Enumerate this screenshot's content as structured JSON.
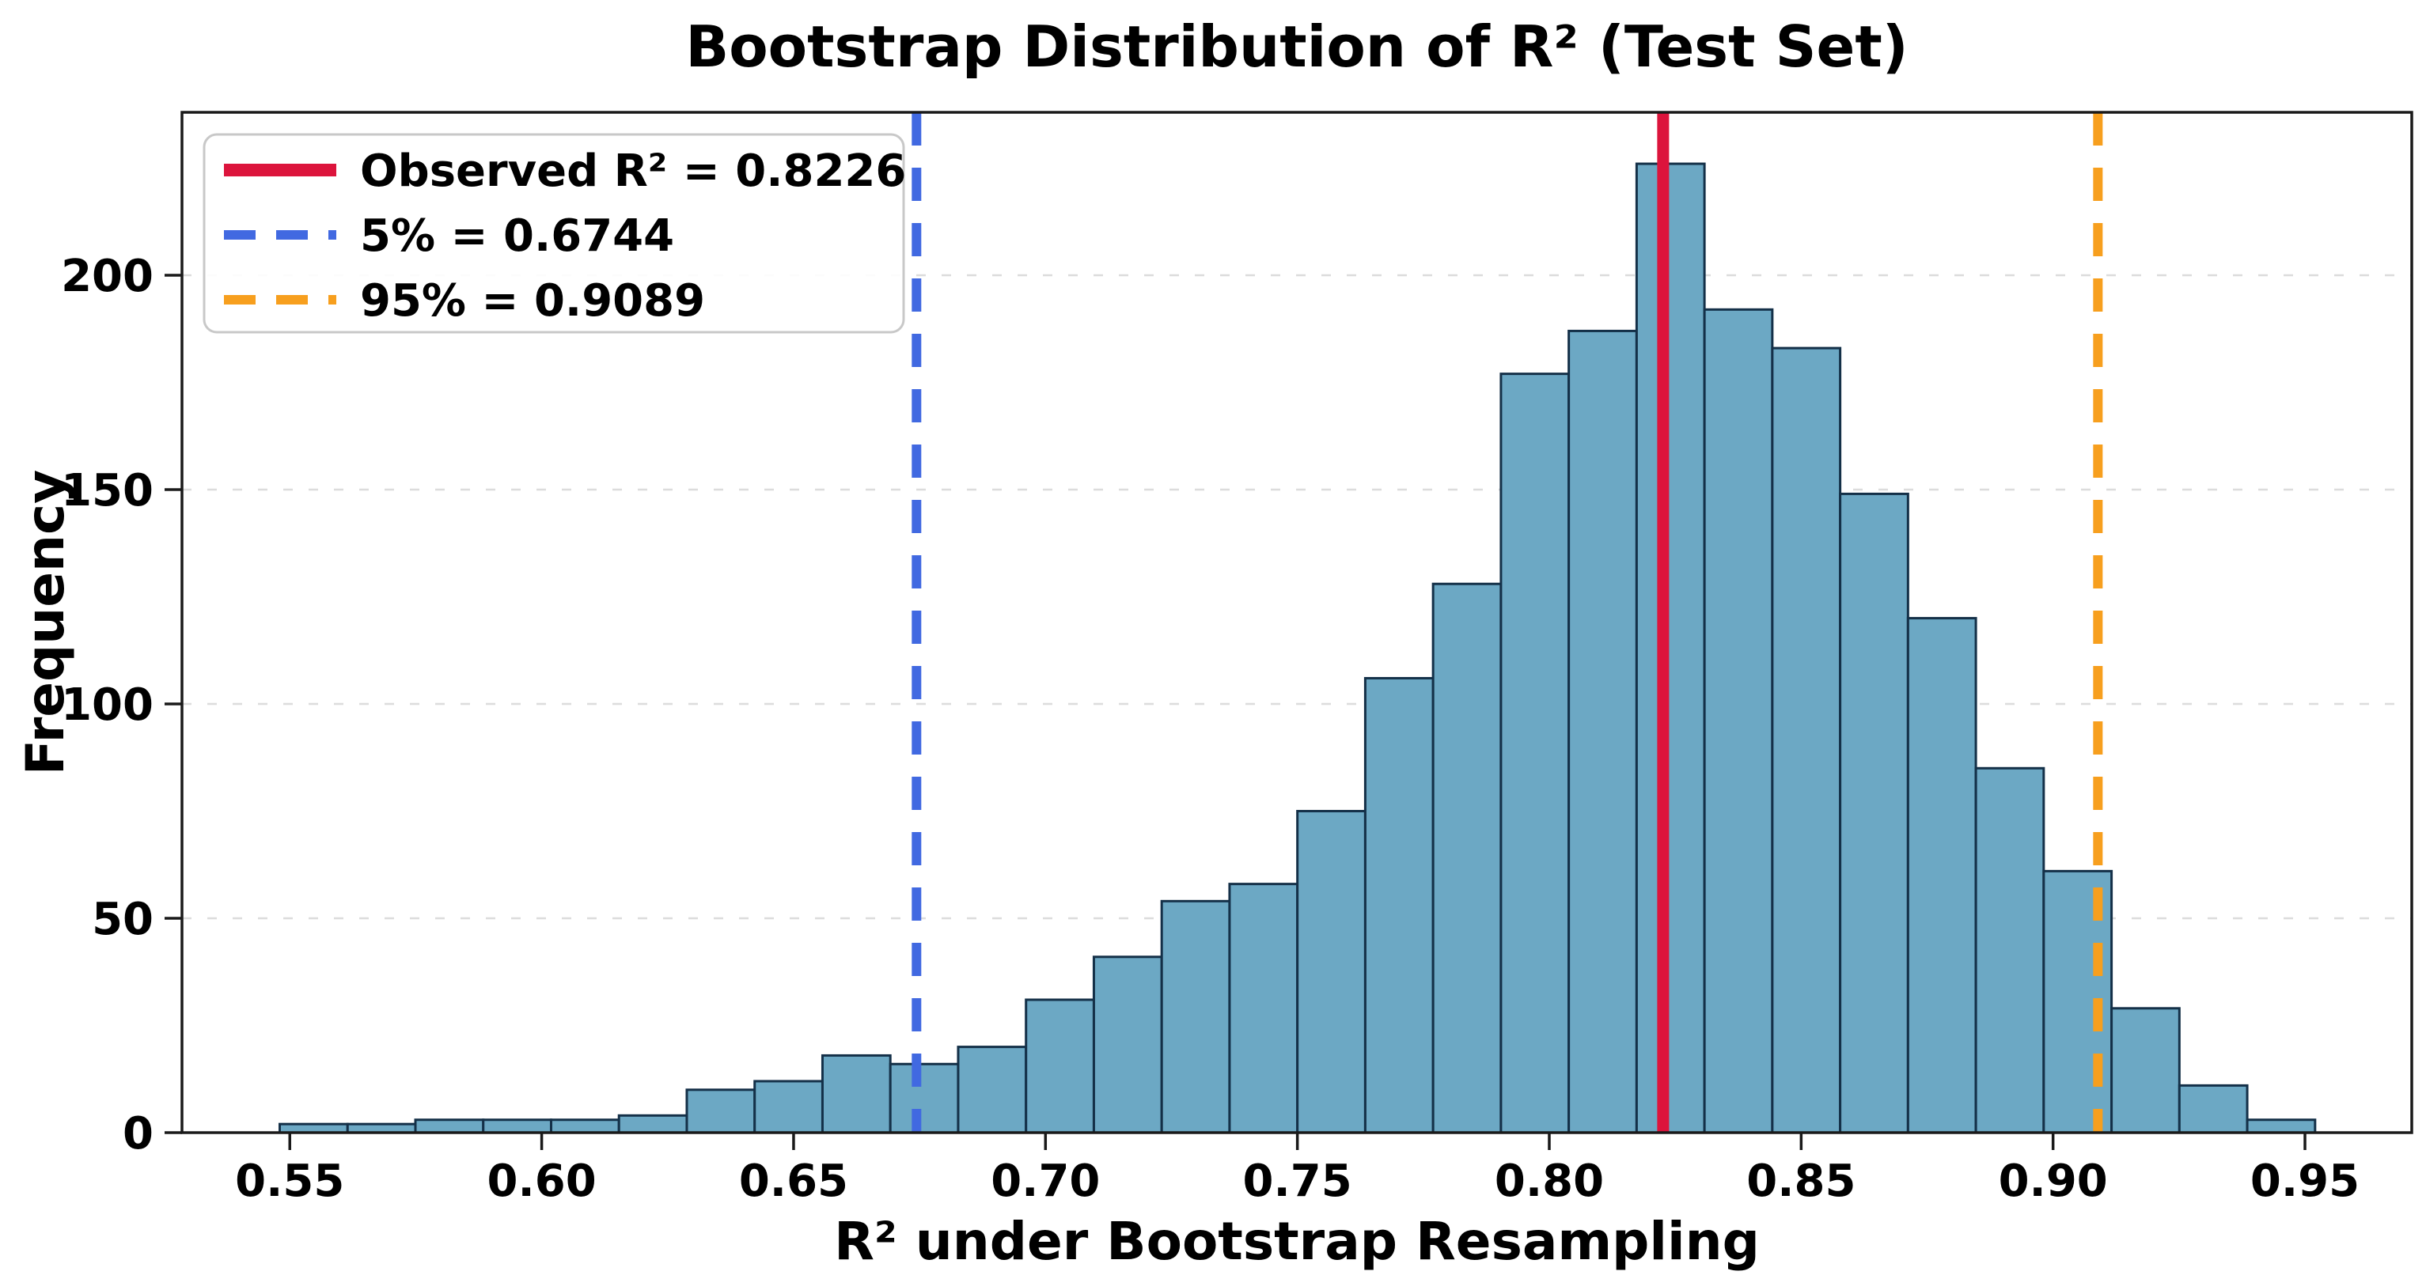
{
  "chart_data": {
    "type": "bar",
    "subtype": "histogram",
    "title": "Bootstrap Distribution of R² (Test Set)",
    "xlabel": "R² under Bootstrap Resampling",
    "ylabel": "Frequency",
    "bin_start": 0.548,
    "bin_width": 0.013467,
    "values": [
      2,
      2,
      3,
      3,
      3,
      4,
      10,
      12,
      18,
      16,
      20,
      31,
      41,
      54,
      58,
      75,
      106,
      128,
      177,
      187,
      226,
      192,
      183,
      149,
      120,
      85,
      61,
      29,
      11,
      3
    ],
    "x_ticks": [
      0.55,
      0.6,
      0.65,
      0.7,
      0.75,
      0.8,
      0.85,
      0.9,
      0.95
    ],
    "x_tick_labels": [
      "0.55",
      "0.60",
      "0.65",
      "0.70",
      "0.75",
      "0.80",
      "0.85",
      "0.90",
      "0.95"
    ],
    "y_ticks": [
      0,
      50,
      100,
      150,
      200
    ],
    "y_tick_labels": [
      "0",
      "50",
      "100",
      "150",
      "200"
    ],
    "xlim": [
      0.5286,
      0.9712
    ],
    "ylim": [
      0,
      238
    ],
    "grid": "horizontal-dashed",
    "legend_position": "upper-left",
    "bar_fill": "#6CA8C4",
    "bar_edge": "#143048",
    "vlines": [
      {
        "label": "Observed R² = 0.8226",
        "value": 0.8226,
        "color": "#DC143C",
        "style": "solid"
      },
      {
        "label": "5% = 0.6744",
        "value": 0.6744,
        "color": "#4169E1",
        "style": "dashed"
      },
      {
        "label": "95% = 0.9089",
        "value": 0.9089,
        "color": "#F79F1E",
        "style": "dashed"
      }
    ]
  }
}
